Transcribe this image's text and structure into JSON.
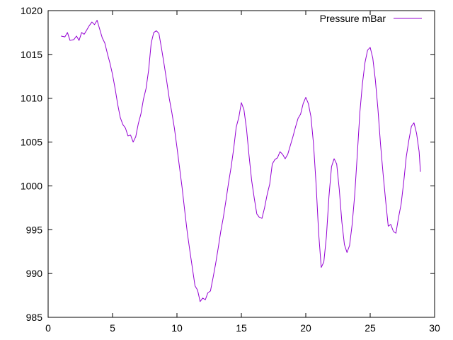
{
  "chart_data": {
    "type": "line",
    "title": "",
    "xlabel": "",
    "ylabel": "",
    "xlim": [
      0,
      30
    ],
    "ylim": [
      985,
      1020
    ],
    "x_ticks": [
      0,
      5,
      10,
      15,
      20,
      25,
      30
    ],
    "y_ticks": [
      985,
      990,
      995,
      1000,
      1005,
      1010,
      1015,
      1020
    ],
    "x_tick_labels": [
      "0",
      "5",
      "10",
      "15",
      "20",
      "25",
      "30"
    ],
    "y_tick_labels": [
      "985",
      "990",
      "995",
      "1000",
      "1005",
      "1010",
      "1015",
      "1020"
    ],
    "grid": false,
    "legend_position": "top-right",
    "series": [
      {
        "name": "Pressure mBar",
        "color": "#9400d3",
        "points": [
          [
            1.0,
            1017.1
          ],
          [
            1.3,
            1017.0
          ],
          [
            1.5,
            1017.5
          ],
          [
            1.7,
            1016.6
          ],
          [
            2.0,
            1016.7
          ],
          [
            2.2,
            1017.1
          ],
          [
            2.4,
            1016.6
          ],
          [
            2.6,
            1017.5
          ],
          [
            2.8,
            1017.3
          ],
          [
            3.0,
            1017.8
          ],
          [
            3.2,
            1018.3
          ],
          [
            3.4,
            1018.7
          ],
          [
            3.6,
            1018.4
          ],
          [
            3.8,
            1018.9
          ],
          [
            4.0,
            1017.9
          ],
          [
            4.2,
            1016.9
          ],
          [
            4.4,
            1016.3
          ],
          [
            4.6,
            1015.1
          ],
          [
            4.8,
            1014.0
          ],
          [
            5.0,
            1012.7
          ],
          [
            5.2,
            1011.1
          ],
          [
            5.4,
            1009.3
          ],
          [
            5.6,
            1007.8
          ],
          [
            5.8,
            1007.0
          ],
          [
            6.0,
            1006.6
          ],
          [
            6.2,
            1005.7
          ],
          [
            6.4,
            1005.8
          ],
          [
            6.6,
            1005.0
          ],
          [
            6.8,
            1005.6
          ],
          [
            7.0,
            1007.1
          ],
          [
            7.2,
            1008.2
          ],
          [
            7.4,
            1009.9
          ],
          [
            7.6,
            1011.1
          ],
          [
            7.8,
            1013.2
          ],
          [
            8.0,
            1016.3
          ],
          [
            8.2,
            1017.5
          ],
          [
            8.4,
            1017.7
          ],
          [
            8.6,
            1017.4
          ],
          [
            8.8,
            1015.7
          ],
          [
            9.0,
            1013.9
          ],
          [
            9.2,
            1012.0
          ],
          [
            9.4,
            1010.0
          ],
          [
            9.6,
            1008.4
          ],
          [
            9.8,
            1006.6
          ],
          [
            10.0,
            1004.4
          ],
          [
            10.2,
            1002.1
          ],
          [
            10.4,
            999.8
          ],
          [
            10.6,
            997.2
          ],
          [
            10.8,
            994.7
          ],
          [
            11.0,
            992.6
          ],
          [
            11.2,
            990.6
          ],
          [
            11.4,
            988.6
          ],
          [
            11.6,
            988.1
          ],
          [
            11.8,
            986.8
          ],
          [
            12.0,
            987.2
          ],
          [
            12.2,
            987.0
          ],
          [
            12.4,
            987.8
          ],
          [
            12.6,
            988.0
          ],
          [
            12.8,
            989.5
          ],
          [
            13.0,
            991.1
          ],
          [
            13.2,
            992.9
          ],
          [
            13.4,
            994.8
          ],
          [
            13.6,
            996.4
          ],
          [
            13.8,
            998.3
          ],
          [
            14.0,
            1000.3
          ],
          [
            14.2,
            1002.1
          ],
          [
            14.4,
            1004.2
          ],
          [
            14.6,
            1006.7
          ],
          [
            14.8,
            1007.8
          ],
          [
            15.0,
            1009.5
          ],
          [
            15.2,
            1008.7
          ],
          [
            15.4,
            1006.5
          ],
          [
            15.6,
            1003.4
          ],
          [
            15.8,
            1000.6
          ],
          [
            16.0,
            998.6
          ],
          [
            16.2,
            996.8
          ],
          [
            16.4,
            996.4
          ],
          [
            16.6,
            996.3
          ],
          [
            16.8,
            997.5
          ],
          [
            17.0,
            999.0
          ],
          [
            17.2,
            1000.2
          ],
          [
            17.4,
            1002.5
          ],
          [
            17.6,
            1003.0
          ],
          [
            17.8,
            1003.2
          ],
          [
            18.0,
            1003.9
          ],
          [
            18.2,
            1003.6
          ],
          [
            18.4,
            1003.1
          ],
          [
            18.6,
            1003.6
          ],
          [
            18.8,
            1004.6
          ],
          [
            19.0,
            1005.6
          ],
          [
            19.2,
            1006.7
          ],
          [
            19.4,
            1007.7
          ],
          [
            19.6,
            1008.2
          ],
          [
            19.8,
            1009.4
          ],
          [
            20.0,
            1010.1
          ],
          [
            20.2,
            1009.4
          ],
          [
            20.4,
            1007.9
          ],
          [
            20.6,
            1004.8
          ],
          [
            20.8,
            1000.2
          ],
          [
            21.0,
            994.6
          ],
          [
            21.2,
            990.7
          ],
          [
            21.4,
            991.3
          ],
          [
            21.6,
            994.2
          ],
          [
            21.8,
            998.8
          ],
          [
            22.0,
            1002.2
          ],
          [
            22.2,
            1003.1
          ],
          [
            22.4,
            1002.5
          ],
          [
            22.6,
            999.6
          ],
          [
            22.8,
            995.9
          ],
          [
            23.0,
            993.3
          ],
          [
            23.2,
            992.4
          ],
          [
            23.4,
            993.2
          ],
          [
            23.6,
            995.6
          ],
          [
            23.8,
            999.0
          ],
          [
            24.0,
            1003.6
          ],
          [
            24.2,
            1008.4
          ],
          [
            24.4,
            1011.7
          ],
          [
            24.6,
            1014.1
          ],
          [
            24.8,
            1015.5
          ],
          [
            25.0,
            1015.8
          ],
          [
            25.2,
            1014.6
          ],
          [
            25.4,
            1012.1
          ],
          [
            25.6,
            1008.8
          ],
          [
            25.8,
            1004.8
          ],
          [
            26.0,
            1001.4
          ],
          [
            26.2,
            998.3
          ],
          [
            26.4,
            995.4
          ],
          [
            26.6,
            995.6
          ],
          [
            26.8,
            994.8
          ],
          [
            27.0,
            994.6
          ],
          [
            27.2,
            996.4
          ],
          [
            27.4,
            997.9
          ],
          [
            27.6,
            1000.4
          ],
          [
            27.8,
            1003.3
          ],
          [
            28.0,
            1005.2
          ],
          [
            28.2,
            1006.8
          ],
          [
            28.4,
            1007.2
          ],
          [
            28.6,
            1006.0
          ],
          [
            28.8,
            1003.9
          ],
          [
            28.9,
            1001.6
          ]
        ]
      }
    ]
  }
}
